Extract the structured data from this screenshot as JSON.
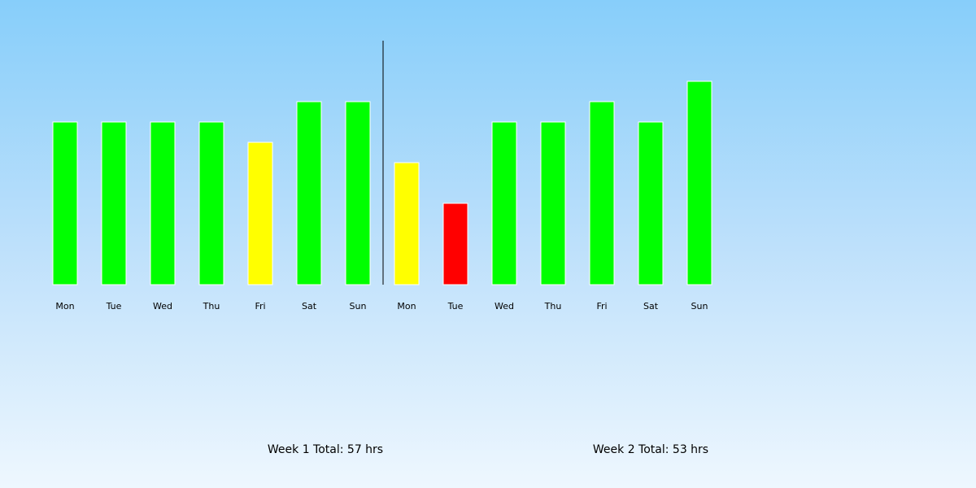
{
  "chart_data": {
    "type": "bar",
    "weeks": [
      {
        "name": "Week 1",
        "total_text": "Week 1 Total: 57 hrs",
        "days": [
          {
            "day": "Mon",
            "hours": 8,
            "color": "#00ff00"
          },
          {
            "day": "Tue",
            "hours": 8,
            "color": "#00ff00"
          },
          {
            "day": "Wed",
            "hours": 8,
            "color": "#00ff00"
          },
          {
            "day": "Thu",
            "hours": 8,
            "color": "#00ff00"
          },
          {
            "day": "Fri",
            "hours": 7,
            "color": "#ffff00"
          },
          {
            "day": "Sat",
            "hours": 9,
            "color": "#00ff00"
          },
          {
            "day": "Sun",
            "hours": 9,
            "color": "#00ff00"
          }
        ]
      },
      {
        "name": "Week 2",
        "total_text": "Week 2 Total: 53 hrs",
        "days": [
          {
            "day": "Mon",
            "hours": 6,
            "color": "#ffff00"
          },
          {
            "day": "Tue",
            "hours": 4,
            "color": "#ff0000"
          },
          {
            "day": "Wed",
            "hours": 8,
            "color": "#00ff00"
          },
          {
            "day": "Thu",
            "hours": 8,
            "color": "#00ff00"
          },
          {
            "day": "Fri",
            "hours": 9,
            "color": "#00ff00"
          },
          {
            "day": "Sat",
            "hours": 8,
            "color": "#00ff00"
          },
          {
            "day": "Sun",
            "hours": 10,
            "color": "#00ff00"
          }
        ]
      }
    ],
    "ylim": [
      0,
      12
    ],
    "grid": false,
    "legend": "none",
    "week_divider": true
  }
}
